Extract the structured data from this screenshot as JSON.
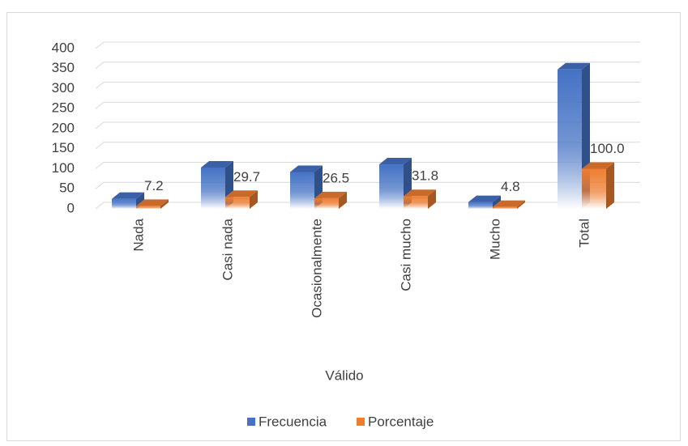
{
  "chart_data": {
    "type": "bar3d",
    "x_label": "Válido",
    "categories": [
      "Nada",
      "Casi nada",
      "Ocasionalmente",
      "Casi mucho",
      "Mucho",
      "Total"
    ],
    "series": [
      {
        "name": "Frecuencia",
        "color": "#4472c4",
        "values": [
          25,
          103,
          92,
          111,
          17,
          348
        ]
      },
      {
        "name": "Porcentaje",
        "color": "#ed7d31",
        "values": [
          7.2,
          29.7,
          26.5,
          31.8,
          4.8,
          100
        ],
        "value_labels": [
          "7.2",
          "29.7",
          "26.5",
          "31.8",
          "4.8",
          "100.0"
        ]
      }
    ],
    "ylim": [
      0,
      400
    ],
    "yticks": [
      0,
      50,
      100,
      150,
      200,
      250,
      300,
      350,
      400
    ],
    "grid": true,
    "legend": "bottom"
  }
}
